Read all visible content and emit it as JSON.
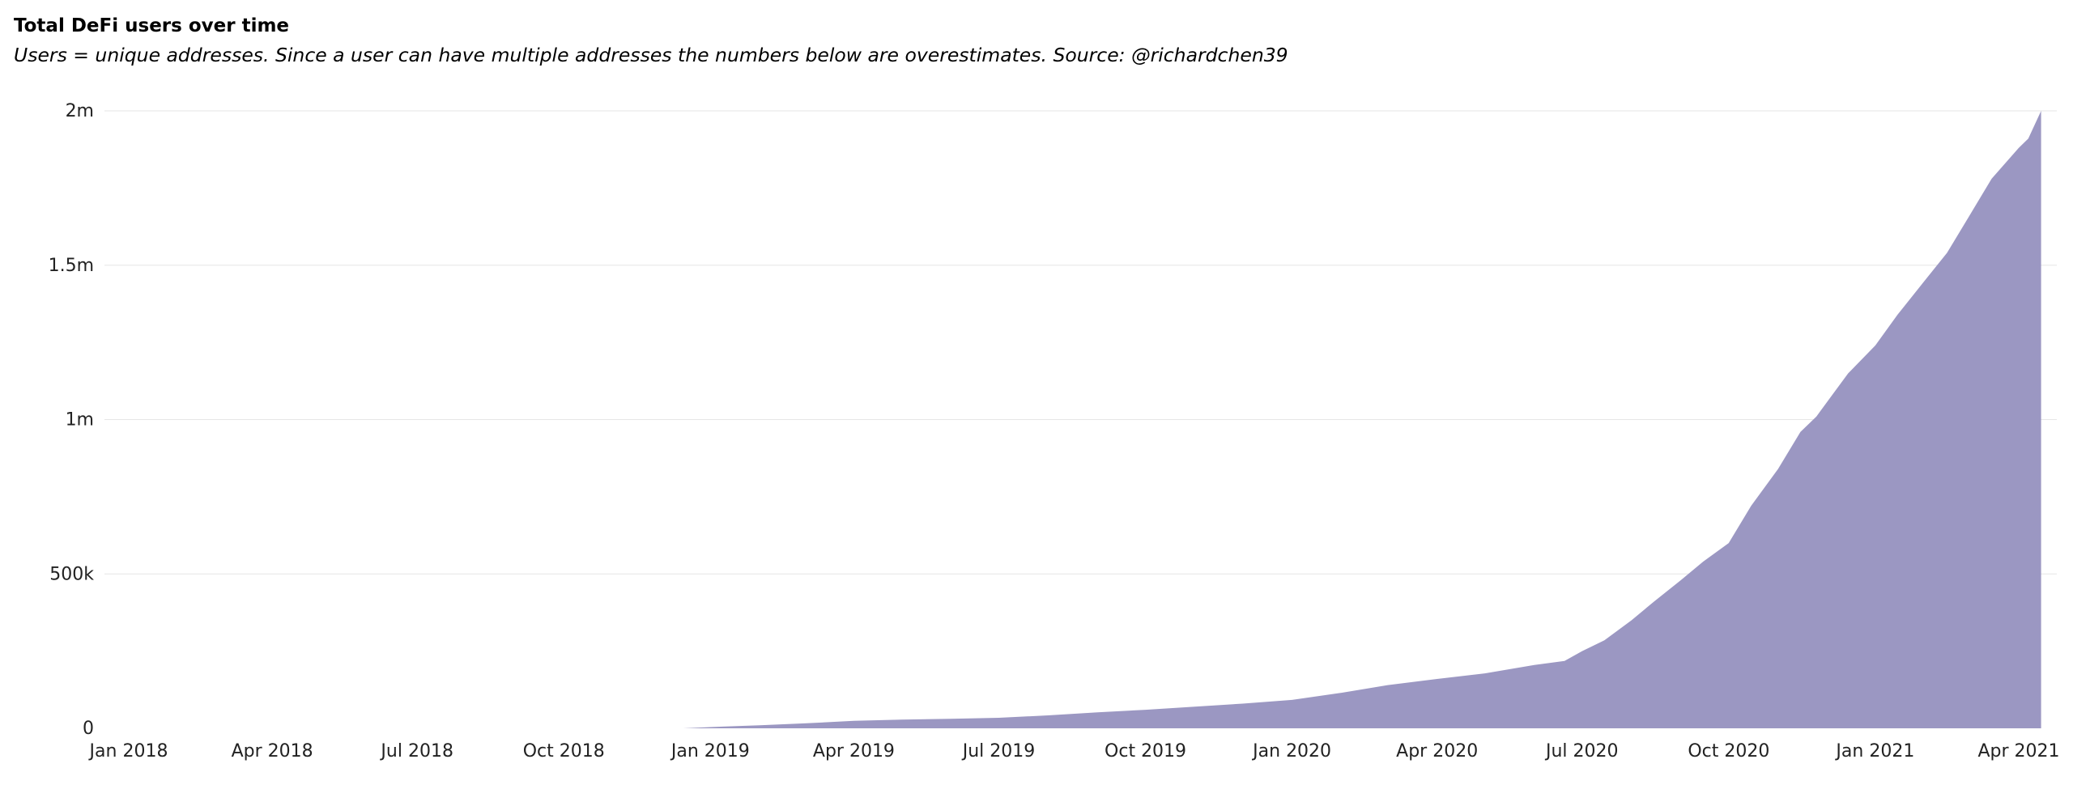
{
  "header": {
    "title": "Total DeFi users over time",
    "subtitle": "Users = unique addresses. Since a user can have multiple addresses the numbers below are overestimates. Source: @richardchen39"
  },
  "chart_data": {
    "type": "area",
    "title": "Total DeFi users over time",
    "subtitle": "Users = unique addresses. Since a user can have multiple addresses the numbers below are overestimates. Source: @richardchen39",
    "xlabel": "",
    "ylabel": "",
    "xlim": [
      "2018-01-01",
      "2021-04-15"
    ],
    "ylim": [
      0,
      2000000
    ],
    "grid": true,
    "x_ticks": [
      {
        "date": "2018-01-01",
        "label": "Jan 2018"
      },
      {
        "date": "2018-04-01",
        "label": "Apr 2018"
      },
      {
        "date": "2018-07-01",
        "label": "Jul 2018"
      },
      {
        "date": "2018-10-01",
        "label": "Oct 2018"
      },
      {
        "date": "2019-01-01",
        "label": "Jan 2019"
      },
      {
        "date": "2019-04-01",
        "label": "Apr 2019"
      },
      {
        "date": "2019-07-01",
        "label": "Jul 2019"
      },
      {
        "date": "2019-10-01",
        "label": "Oct 2019"
      },
      {
        "date": "2020-01-01",
        "label": "Jan 2020"
      },
      {
        "date": "2020-04-01",
        "label": "Apr 2020"
      },
      {
        "date": "2020-07-01",
        "label": "Jul 2020"
      },
      {
        "date": "2020-10-01",
        "label": "Oct 2020"
      },
      {
        "date": "2021-01-01",
        "label": "Jan 2021"
      },
      {
        "date": "2021-04-01",
        "label": "Apr 2021"
      }
    ],
    "y_ticks": [
      {
        "value": 0,
        "label": "0"
      },
      {
        "value": 500000,
        "label": "500k"
      },
      {
        "value": 1000000,
        "label": "1m"
      },
      {
        "value": 1500000,
        "label": "1.5m"
      },
      {
        "value": 2000000,
        "label": "2m"
      }
    ],
    "series": [
      {
        "color": "#9b97c2",
        "x": [
          "2018-12-15",
          "2019-01-01",
          "2019-02-01",
          "2019-03-01",
          "2019-04-01",
          "2019-05-01",
          "2019-06-01",
          "2019-07-01",
          "2019-08-01",
          "2019-09-01",
          "2019-10-01",
          "2019-11-01",
          "2019-12-01",
          "2020-01-01",
          "2020-02-01",
          "2020-03-01",
          "2020-04-01",
          "2020-05-01",
          "2020-06-01",
          "2020-06-20",
          "2020-07-01",
          "2020-07-15",
          "2020-08-01",
          "2020-08-15",
          "2020-09-01",
          "2020-09-15",
          "2020-10-01",
          "2020-10-15",
          "2020-11-01",
          "2020-11-15",
          "2020-11-25",
          "2020-12-05",
          "2020-12-15",
          "2021-01-01",
          "2021-01-15",
          "2021-02-01",
          "2021-02-15",
          "2021-03-01",
          "2021-03-15",
          "2021-04-01",
          "2021-04-07",
          "2021-04-15"
        ],
        "y": [
          0,
          4000,
          10000,
          16000,
          24000,
          28000,
          31000,
          34000,
          42000,
          52000,
          60000,
          70000,
          80000,
          92000,
          115000,
          140000,
          160000,
          178000,
          205000,
          218000,
          250000,
          285000,
          350000,
          410000,
          480000,
          540000,
          600000,
          720000,
          840000,
          960000,
          1010000,
          1080000,
          1150000,
          1240000,
          1340000,
          1450000,
          1540000,
          1660000,
          1780000,
          1880000,
          1910000,
          2000000
        ]
      }
    ]
  }
}
